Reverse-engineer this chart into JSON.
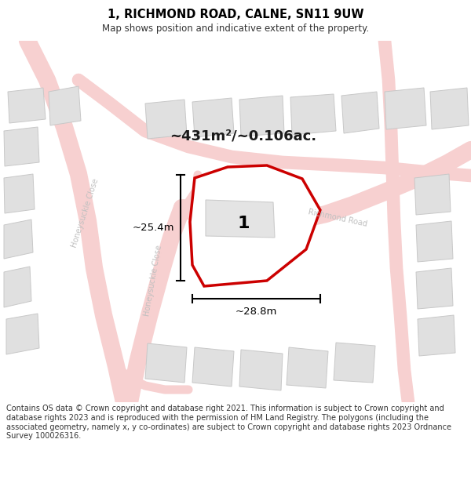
{
  "title": "1, RICHMOND ROAD, CALNE, SN11 9UW",
  "subtitle": "Map shows position and indicative extent of the property.",
  "area_text": "~431m²/~0.106ac.",
  "label_1": "1",
  "dim_vertical": "~25.4m",
  "dim_horizontal": "~28.8m",
  "footer_lines": [
    "Contains OS data © Crown copyright and database right 2021. This information is subject to Crown copyright and database rights 2023 and is reproduced with the permission of",
    "HM Land Registry. The polygons (including the associated geometry, namely x, y co-ordinates) are subject to Crown copyright and database rights 2023 Ordnance Survey",
    "100026316."
  ],
  "map_bg": "#f2f2f2",
  "road_fill": "#f7d0d0",
  "road_line": "#e8a0a0",
  "building_color": "#e0e0e0",
  "building_outline": "#c8c8c8",
  "plot_fill": "#ffffff",
  "plot_outline": "#cc0000",
  "street_label_color": "#c0c0c0",
  "title_color": "#000000",
  "dim_color": "#000000",
  "label_color": "#000000",
  "footer_color": "#333333"
}
